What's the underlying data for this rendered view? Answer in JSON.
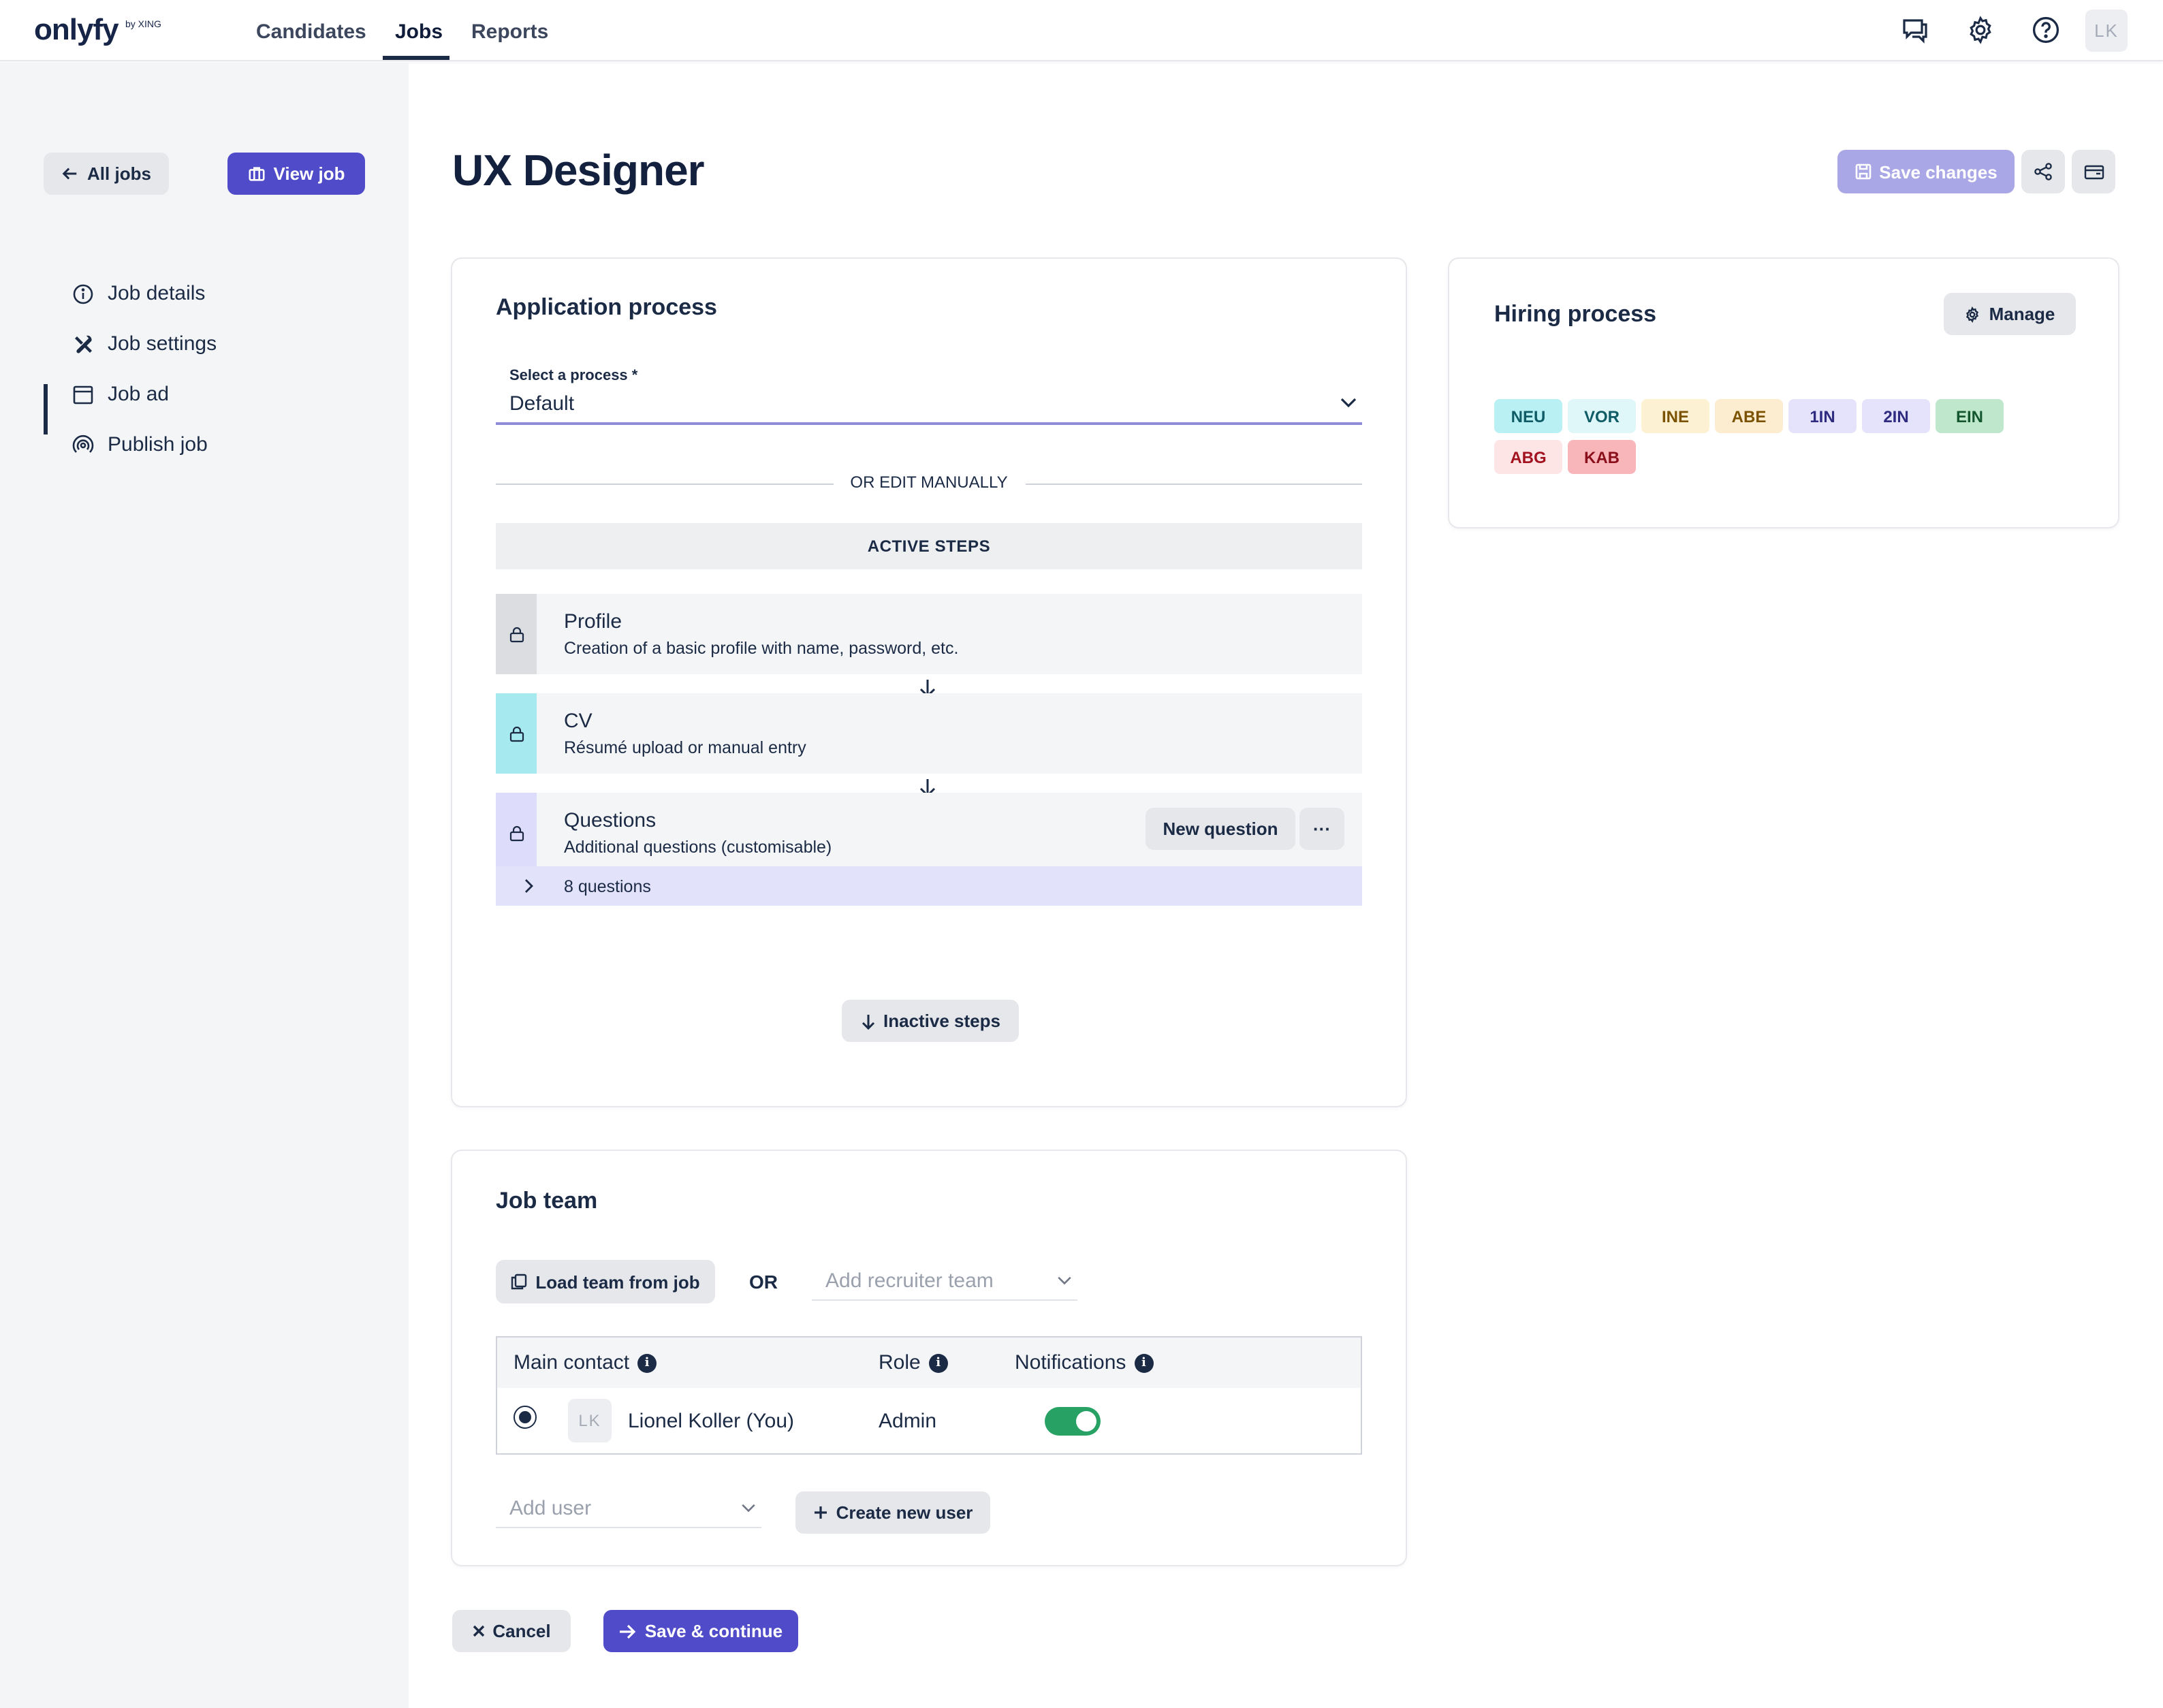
{
  "brand": {
    "logo": "onlyfy",
    "logo_sub": "by XING"
  },
  "nav": {
    "tabs": [
      "Candidates",
      "Jobs",
      "Reports"
    ],
    "active_tab": "Jobs"
  },
  "header_icons": [
    "chat-icon",
    "gear-icon",
    "help-icon"
  ],
  "user": {
    "initials": "LK"
  },
  "sidebar": {
    "all_jobs_label": "All jobs",
    "view_job_label": "View job",
    "items": [
      {
        "label": "Job details",
        "icon": "info-icon"
      },
      {
        "label": "Job settings",
        "icon": "tools-icon",
        "active": true
      },
      {
        "label": "Job ad",
        "icon": "browser-icon"
      },
      {
        "label": "Publish job",
        "icon": "broadcast-icon"
      }
    ]
  },
  "page": {
    "title": "UX Designer",
    "save_changes_label": "Save changes"
  },
  "application_process": {
    "title": "Application process",
    "select_label": "Select a process *",
    "select_value": "Default",
    "divider_text": "OR EDIT MANUALLY",
    "active_steps_label": "ACTIVE STEPS",
    "steps": [
      {
        "title": "Profile",
        "description": "Creation of a basic profile with name, password, etc.",
        "color": "#dcdde1"
      },
      {
        "title": "CV",
        "description": "Résumé upload or manual entry",
        "color": "#a6e9ee"
      },
      {
        "title": "Questions",
        "description": "Additional questions (customisable)",
        "color": "#dedcfb"
      }
    ],
    "new_question_label": "New question",
    "more_label": "···",
    "questions_count": "8 questions",
    "inactive_steps_label": "Inactive steps"
  },
  "hiring_process": {
    "title": "Hiring process",
    "manage_label": "Manage",
    "stages": [
      {
        "code": "NEU",
        "bg": "#b9f0f4",
        "fg": "#0f5c66"
      },
      {
        "code": "VOR",
        "bg": "#dff7f9",
        "fg": "#0f5c66"
      },
      {
        "code": "INE",
        "bg": "#fdf1d4",
        "fg": "#7a5200"
      },
      {
        "code": "ABE",
        "bg": "#fdedd0",
        "fg": "#7a5200"
      },
      {
        "code": "1IN",
        "bg": "#e4e3fb",
        "fg": "#2e2b80"
      },
      {
        "code": "2IN",
        "bg": "#e4e3fb",
        "fg": "#2e2b80"
      },
      {
        "code": "EIN",
        "bg": "#bfe7cc",
        "fg": "#14572f"
      },
      {
        "code": "ABG",
        "bg": "#fde5e6",
        "fg": "#a3121f"
      },
      {
        "code": "KAB",
        "bg": "#f8b6bb",
        "fg": "#8a0f1a"
      }
    ]
  },
  "job_team": {
    "title": "Job team",
    "load_team_label": "Load team from job",
    "or_label": "OR",
    "recruiter_team_placeholder": "Add recruiter team",
    "columns": [
      "Main contact",
      "Role",
      "Notifications"
    ],
    "members": [
      {
        "initials": "LK",
        "name": "Lionel Koller (You)",
        "role": "Admin",
        "notifications": true,
        "main_contact": true
      }
    ],
    "add_user_placeholder": "Add user",
    "create_user_label": "Create new user"
  },
  "footer": {
    "cancel_label": "Cancel",
    "save_continue_label": "Save & continue"
  }
}
